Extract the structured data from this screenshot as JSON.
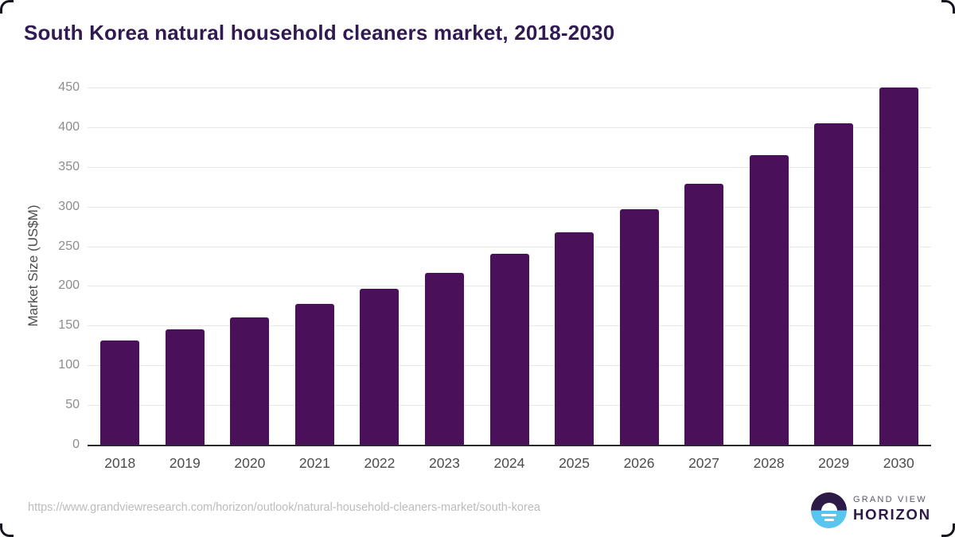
{
  "chart_data": {
    "type": "bar",
    "title": "South Korea natural household cleaners market, 2018-2030",
    "categories": [
      "2018",
      "2019",
      "2020",
      "2021",
      "2022",
      "2023",
      "2024",
      "2025",
      "2026",
      "2027",
      "2028",
      "2029",
      "2030"
    ],
    "values": [
      131,
      145,
      160,
      177,
      196,
      217,
      241,
      268,
      297,
      329,
      365,
      405,
      450
    ],
    "xlabel": "",
    "ylabel": "Market Size (US$M)",
    "ylim": [
      0,
      450
    ],
    "ytick_step": 50,
    "grid": true,
    "legend": false
  },
  "colors": {
    "bar": "#4a1059",
    "title": "#311a52",
    "gridline": "#e8e8e8",
    "axis_line": "#2b2b2b",
    "y_tick_label": "#8d8d8d",
    "x_tick_label": "#4c4c4c",
    "source_url": "#bcbcbc",
    "logo_blue": "#59c6f2",
    "logo_dark": "#2e1a47"
  },
  "footer": {
    "source_url": "https://www.grandviewresearch.com/horizon/outlook/natural-household-cleaners-market/south-korea",
    "logo": {
      "line1": "GRAND VIEW",
      "line2": "HORIZON"
    }
  }
}
